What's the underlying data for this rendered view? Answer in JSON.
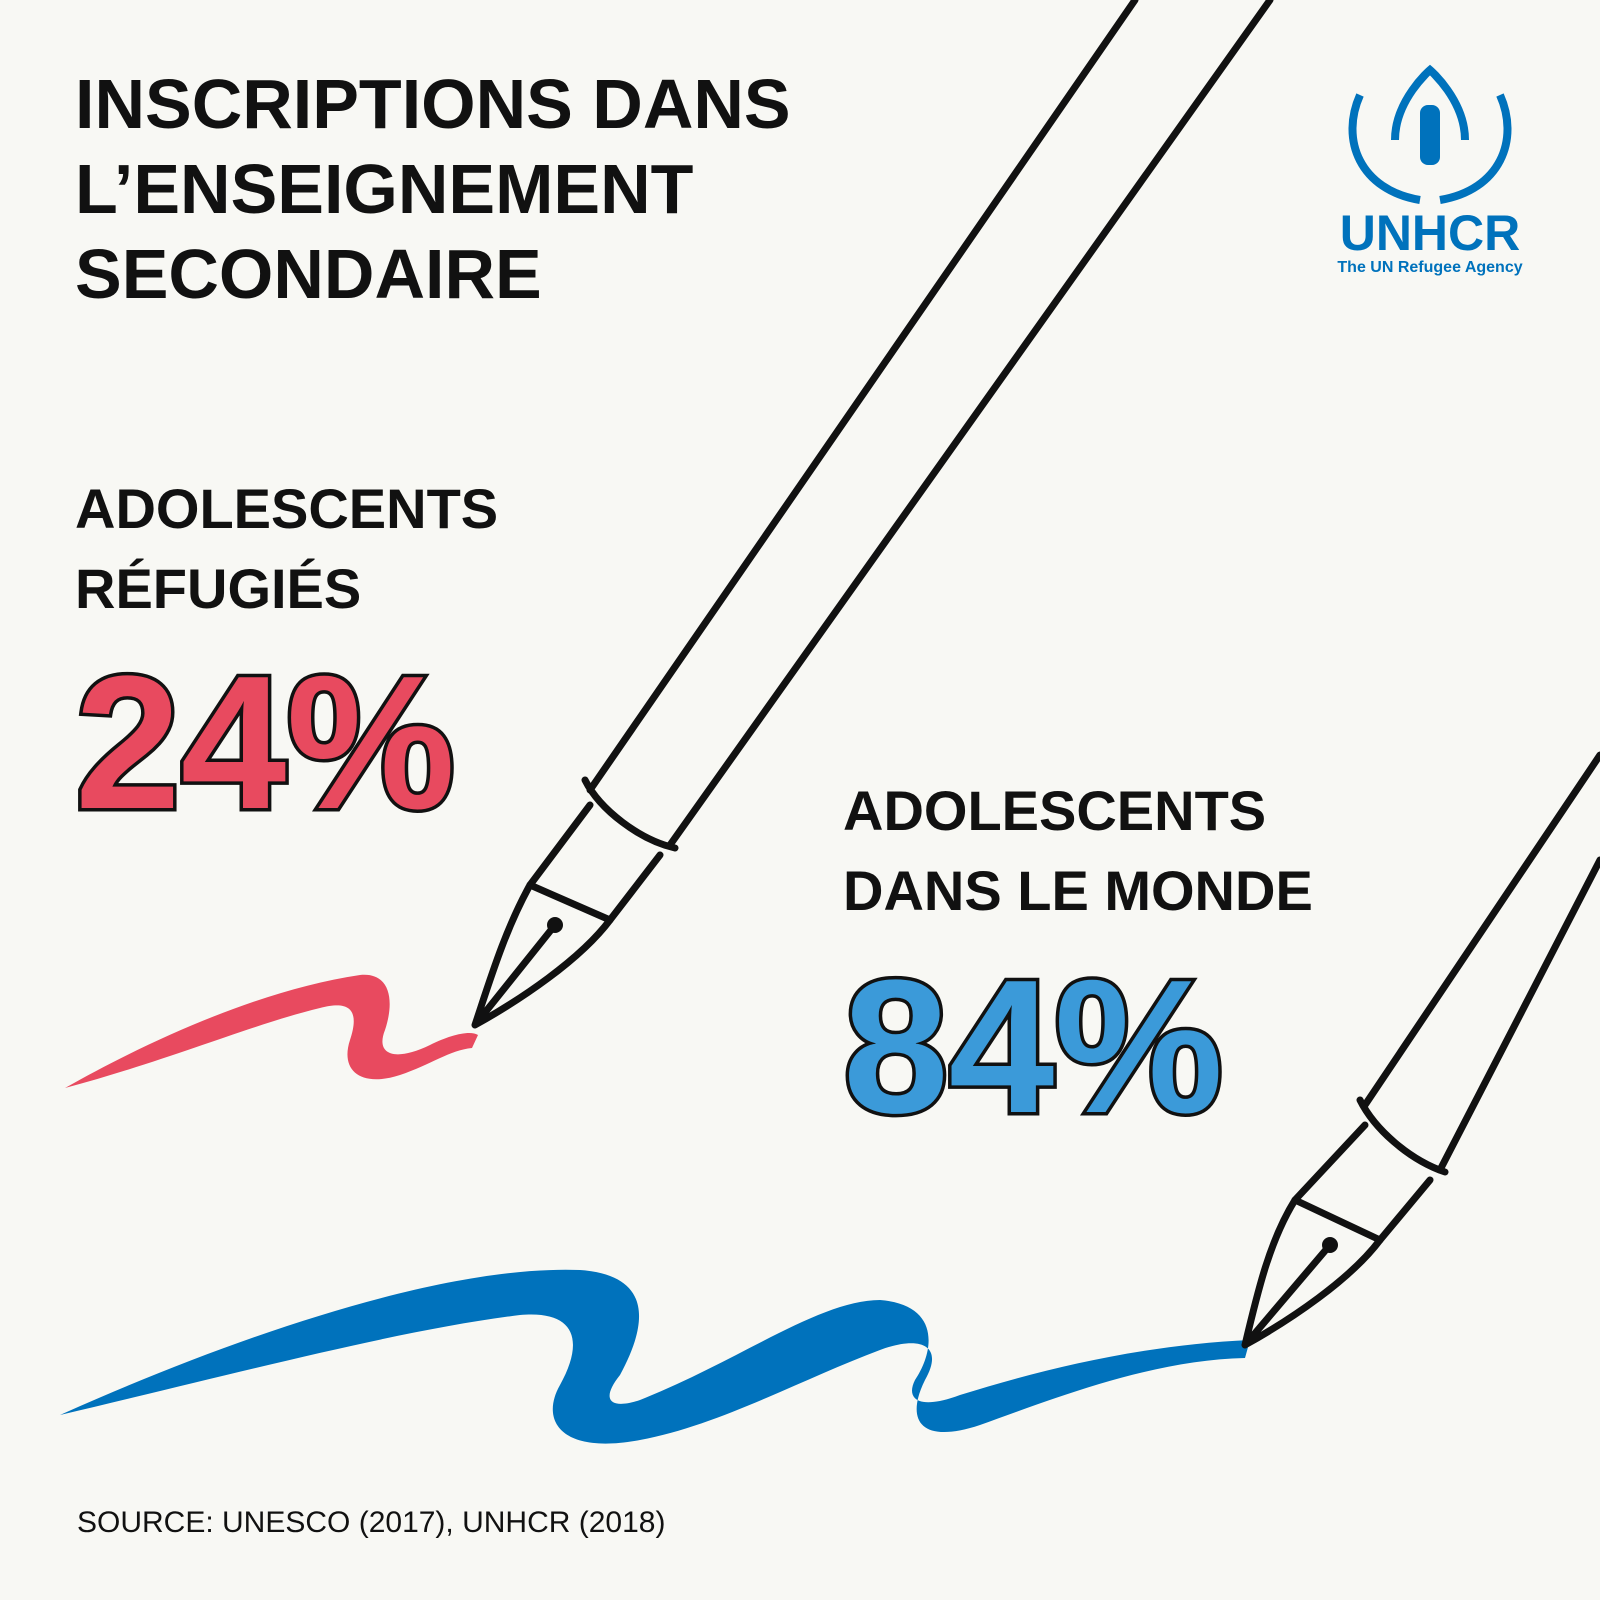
{
  "header": {
    "title": [
      "INSCRIPTIONS DANS",
      "L’ENSEIGNEMENT",
      "SECONDAIRE"
    ]
  },
  "logo": {
    "name": "UNHCR",
    "tagline": "The UN Refugee Agency"
  },
  "stats": [
    {
      "label": [
        "ADOLESCENTS",
        "RÉFUGIÉS"
      ],
      "value": "24%",
      "color": "#e84a5f"
    },
    {
      "label": [
        "ADOLESCENTS",
        "DANS LE MONDE"
      ],
      "value": "84%",
      "color": "#3b9ad9"
    }
  ],
  "footer": {
    "source": "SOURCE: UNESCO (2017), UNHCR (2018)"
  }
}
